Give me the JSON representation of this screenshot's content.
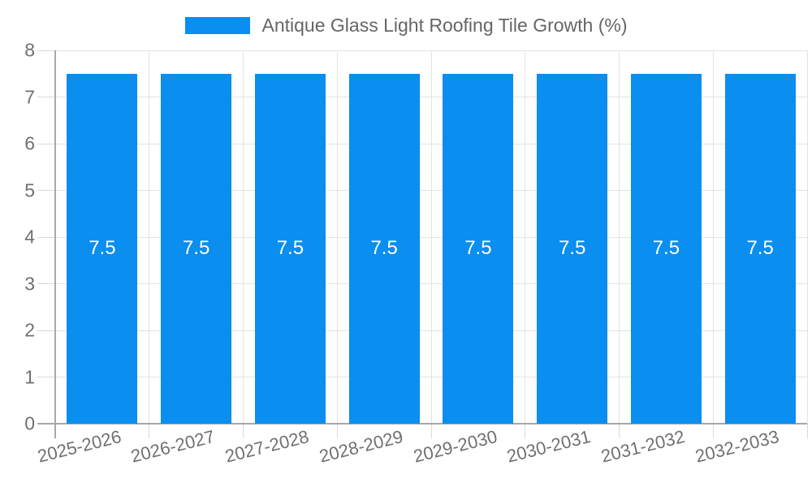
{
  "chart_data": {
    "type": "bar",
    "title": "Antique Glass Light Roofing Tile Growth (%)",
    "categories": [
      "2025-2026",
      "2026-2027",
      "2027-2028",
      "2028-2029",
      "2029-2030",
      "2030-2031",
      "2031-2032",
      "2032-2033"
    ],
    "values": [
      7.5,
      7.5,
      7.5,
      7.5,
      7.5,
      7.5,
      7.5,
      7.5
    ],
    "value_labels": [
      "7.5",
      "7.5",
      "7.5",
      "7.5",
      "7.5",
      "7.5",
      "7.5",
      "7.5"
    ],
    "xlabel": "",
    "ylabel": "",
    "ylim": [
      0,
      8
    ],
    "yticks": [
      0,
      1,
      2,
      3,
      4,
      5,
      6,
      7,
      8
    ],
    "grid": true,
    "legend_position": "top",
    "x_label_rotation_deg": -14,
    "colors": {
      "bar": "#0a8ef0",
      "bar_label": "#ffffff",
      "axis_text": "#707070",
      "legend_text": "#666666",
      "gridline": "#e3e3e3",
      "tick": "#dadada",
      "axis_line": "#a8a8a8",
      "background": "#ffffff"
    }
  }
}
